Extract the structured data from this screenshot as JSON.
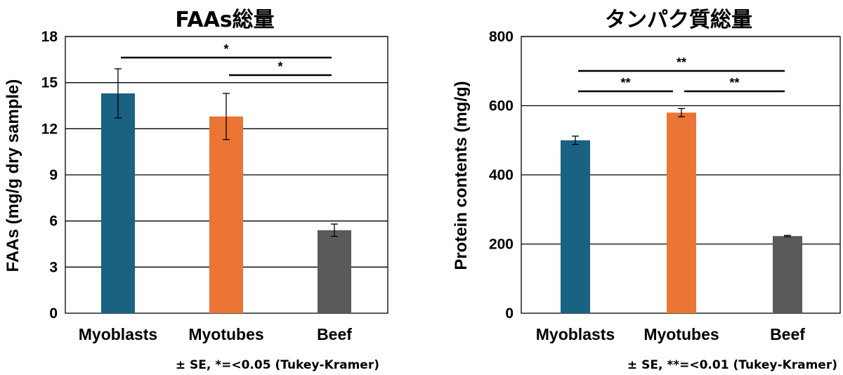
{
  "chart_data": [
    {
      "type": "bar",
      "title": "FAAs総量",
      "ylabel": "FAAs (mg/g dry sample)",
      "xlabel": "",
      "categories": [
        "Myoblasts",
        "Myotubes",
        "Beef"
      ],
      "values": [
        14.3,
        12.8,
        5.4
      ],
      "errors": [
        1.6,
        1.5,
        0.4
      ],
      "colors": [
        "#1a6282",
        "#ea7535",
        "#5a5a5a"
      ],
      "ylim": [
        0,
        18
      ],
      "yticks": [
        "0",
        "3",
        "6",
        "9",
        "12",
        "15",
        "18"
      ],
      "grid": true,
      "significance": [
        {
          "from": 0,
          "to": 2,
          "label": "*"
        },
        {
          "from": 1,
          "to": 2,
          "label": "*"
        }
      ],
      "note": "± SE, *=<0.05 (Tukey-Kramer)"
    },
    {
      "type": "bar",
      "title": "タンパク質総量",
      "ylabel": "Protein contents (mg/g)",
      "xlabel": "",
      "categories": [
        "Myoblasts",
        "Myotubes",
        "Beef"
      ],
      "values": [
        500,
        580,
        223
      ],
      "errors": [
        12,
        12,
        2
      ],
      "colors": [
        "#1a6282",
        "#ea7535",
        "#5a5a5a"
      ],
      "ylim": [
        0,
        800
      ],
      "yticks": [
        "0",
        "200",
        "400",
        "600",
        "800"
      ],
      "grid": true,
      "significance": [
        {
          "from": 0,
          "to": 2,
          "label": "**"
        },
        {
          "from": 0,
          "to": 1,
          "label": "**"
        },
        {
          "from": 1,
          "to": 2,
          "label": "**"
        }
      ],
      "note": "± SE, **=<0.01 (Tukey-Kramer)"
    }
  ]
}
